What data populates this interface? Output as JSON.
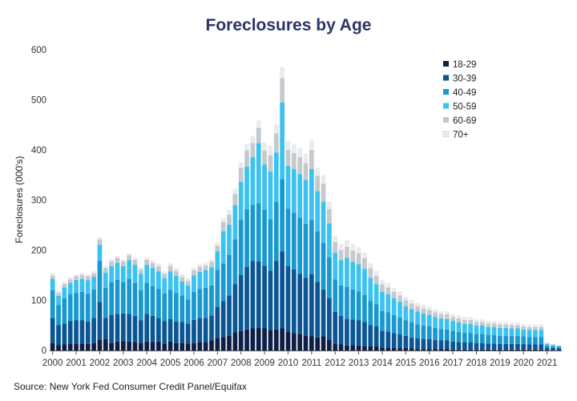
{
  "chart_data": {
    "type": "bar",
    "stacked": true,
    "title": "Foreclosures by Age",
    "ylabel": "Foreclosures (000's)",
    "xlabel": "",
    "ylim": [
      0,
      600
    ],
    "yticks": [
      0,
      100,
      200,
      300,
      400,
      500,
      600
    ],
    "xticks": [
      "2000",
      "2001",
      "2002",
      "2003",
      "2004",
      "2005",
      "2006",
      "2007",
      "2008",
      "2009",
      "2010",
      "2011",
      "2012",
      "2013",
      "2014",
      "2015",
      "2016",
      "2017",
      "2018",
      "2019",
      "2020",
      "2021"
    ],
    "grid": false,
    "legend_position": "top-right",
    "source": "Source: New York Fed Consumer Credit Panel/Equifax",
    "categories": [
      "2000Q1",
      "2000Q2",
      "2000Q3",
      "2000Q4",
      "2001Q1",
      "2001Q2",
      "2001Q3",
      "2001Q4",
      "2002Q1",
      "2002Q2",
      "2002Q3",
      "2002Q4",
      "2003Q1",
      "2003Q2",
      "2003Q3",
      "2003Q4",
      "2004Q1",
      "2004Q2",
      "2004Q3",
      "2004Q4",
      "2005Q1",
      "2005Q2",
      "2005Q3",
      "2005Q4",
      "2006Q1",
      "2006Q2",
      "2006Q3",
      "2006Q4",
      "2007Q1",
      "2007Q2",
      "2007Q3",
      "2007Q4",
      "2008Q1",
      "2008Q2",
      "2008Q3",
      "2008Q4",
      "2009Q1",
      "2009Q2",
      "2009Q3",
      "2009Q4",
      "2010Q1",
      "2010Q2",
      "2010Q3",
      "2010Q4",
      "2011Q1",
      "2011Q2",
      "2011Q3",
      "2011Q4",
      "2012Q1",
      "2012Q2",
      "2012Q3",
      "2012Q4",
      "2013Q1",
      "2013Q2",
      "2013Q3",
      "2013Q4",
      "2014Q1",
      "2014Q2",
      "2014Q3",
      "2014Q4",
      "2015Q1",
      "2015Q2",
      "2015Q3",
      "2015Q4",
      "2016Q1",
      "2016Q2",
      "2016Q3",
      "2016Q4",
      "2017Q1",
      "2017Q2",
      "2017Q3",
      "2017Q4",
      "2018Q1",
      "2018Q2",
      "2018Q3",
      "2018Q4",
      "2019Q1",
      "2019Q2",
      "2019Q3",
      "2019Q4",
      "2020Q1",
      "2020Q2",
      "2020Q3",
      "2020Q4",
      "2021Q1",
      "2021Q2",
      "2021Q3"
    ],
    "series": [
      {
        "name": "18-29",
        "color": "#0d1f45",
        "values": [
          15,
          11,
          12,
          14,
          14,
          14,
          13,
          15,
          22,
          23,
          15,
          18,
          19,
          18,
          17,
          15,
          18,
          17,
          18,
          14,
          18,
          15,
          15,
          14,
          15,
          17,
          17,
          20,
          25,
          27,
          30,
          36,
          39,
          42,
          44,
          46,
          44,
          40,
          42,
          44,
          38,
          35,
          33,
          30,
          28,
          26,
          28,
          22,
          14,
          12,
          10,
          11,
          10,
          9,
          8,
          8,
          6,
          6,
          5,
          4,
          5,
          4,
          3,
          3,
          3,
          3,
          3,
          3,
          2,
          2,
          2,
          2,
          2,
          2,
          2,
          2,
          2,
          2,
          2,
          2,
          2,
          2,
          2,
          2,
          1,
          1,
          1
        ]
      },
      {
        "name": "30-39",
        "color": "#0a5694",
        "values": [
          50,
          40,
          42,
          45,
          46,
          46,
          45,
          50,
          75,
          42,
          56,
          55,
          55,
          55,
          52,
          45,
          55,
          52,
          47,
          45,
          45,
          43,
          42,
          40,
          46,
          48,
          48,
          50,
          62,
          72,
          80,
          96,
          112,
          125,
          135,
          132,
          125,
          119,
          137,
          154,
          130,
          127,
          120,
          115,
          124,
          111,
          94,
          82,
          63,
          57,
          53,
          51,
          50,
          48,
          43,
          40,
          33,
          32,
          30,
          28,
          24,
          22,
          21,
          20,
          20,
          18,
          17,
          17,
          16,
          15,
          14,
          14,
          13,
          13,
          12,
          12,
          11,
          11,
          11,
          11,
          11,
          10,
          10,
          10,
          5,
          4,
          3
        ]
      },
      {
        "name": "40-49",
        "color": "#1898cf",
        "values": [
          55,
          40,
          50,
          53,
          55,
          57,
          55,
          57,
          82,
          60,
          65,
          68,
          62,
          70,
          66,
          60,
          62,
          60,
          58,
          55,
          58,
          57,
          53,
          48,
          56,
          58,
          60,
          60,
          74,
          75,
          81,
          90,
          110,
          115,
          112,
          116,
          112,
          103,
          118,
          144,
          115,
          113,
          112,
          108,
          108,
          101,
          93,
          82,
          65,
          61,
          64,
          60,
          58,
          54,
          48,
          44,
          40,
          38,
          36,
          34,
          31,
          30,
          28,
          27,
          25,
          24,
          23,
          22,
          21,
          20,
          19,
          19,
          18,
          18,
          17,
          17,
          16,
          16,
          16,
          16,
          15,
          15,
          15,
          15,
          4,
          3,
          3
        ]
      },
      {
        "name": "50-59",
        "color": "#3cc2f0",
        "values": [
          23,
          18,
          22,
          23,
          26,
          26,
          27,
          25,
          32,
          30,
          32,
          34,
          32,
          37,
          36,
          33,
          36,
          36,
          35,
          30,
          37,
          34,
          28,
          28,
          33,
          34,
          35,
          36,
          37,
          64,
          60,
          68,
          75,
          85,
          95,
          120,
          90,
          95,
          98,
          153,
          85,
          87,
          87,
          87,
          102,
          80,
          82,
          68,
          53,
          50,
          58,
          55,
          54,
          52,
          46,
          40,
          38,
          36,
          33,
          31,
          28,
          27,
          26,
          24,
          23,
          22,
          21,
          21,
          20,
          19,
          18,
          18,
          17,
          17,
          16,
          16,
          16,
          16,
          15,
          15,
          14,
          14,
          14,
          14,
          3,
          3,
          2
        ]
      },
      {
        "name": "60-69",
        "color": "#c5c9ce",
        "values": [
          7,
          6,
          7,
          7,
          7,
          8,
          8,
          7,
          11,
          10,
          10,
          10,
          10,
          10,
          10,
          9,
          10,
          10,
          10,
          9,
          11,
          10,
          9,
          9,
          10,
          10,
          10,
          11,
          11,
          18,
          20,
          22,
          28,
          32,
          28,
          30,
          28,
          33,
          38,
          48,
          32,
          32,
          34,
          34,
          38,
          30,
          36,
          28,
          21,
          20,
          22,
          22,
          22,
          21,
          19,
          17,
          15,
          14,
          13,
          13,
          12,
          11,
          10,
          10,
          10,
          9,
          9,
          9,
          8,
          8,
          8,
          8,
          7,
          7,
          7,
          7,
          7,
          7,
          7,
          7,
          6,
          6,
          6,
          6,
          2,
          1,
          1
        ]
      },
      {
        "name": "70+",
        "color": "#e9ebee",
        "values": [
          4,
          4,
          4,
          4,
          4,
          4,
          4,
          4,
          4,
          4,
          4,
          4,
          4,
          4,
          4,
          4,
          5,
          5,
          5,
          5,
          5,
          5,
          5,
          5,
          5,
          5,
          5,
          5,
          6,
          8,
          10,
          11,
          12,
          13,
          14,
          15,
          16,
          18,
          18,
          22,
          18,
          18,
          18,
          19,
          20,
          16,
          17,
          15,
          12,
          12,
          13,
          13,
          12,
          11,
          10,
          10,
          9,
          9,
          8,
          8,
          7,
          7,
          7,
          7,
          6,
          6,
          6,
          6,
          6,
          6,
          6,
          6,
          5,
          5,
          5,
          5,
          5,
          5,
          5,
          5,
          5,
          5,
          5,
          5,
          1,
          1,
          1
        ]
      }
    ]
  }
}
